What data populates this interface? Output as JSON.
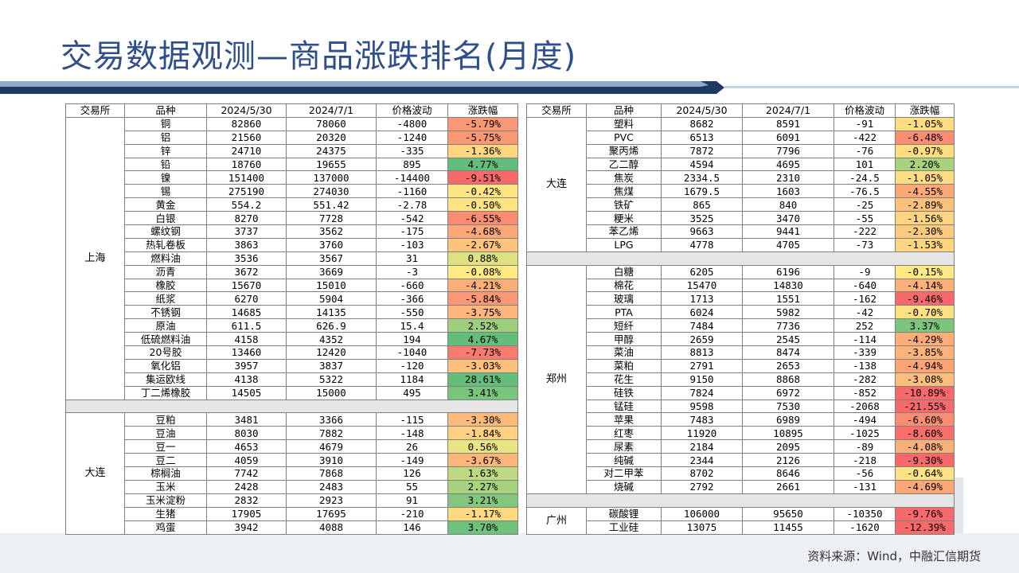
{
  "title": "交易数据观测—商品涨跌排名(月度)",
  "source": "资料来源：Wind，中融汇信期货",
  "headers": [
    "交易所",
    "品种",
    "2024/5/30",
    "2024/7/1",
    "价格波动",
    "涨跌幅"
  ],
  "left_groups": [
    {
      "exchange": "上海",
      "rows": [
        [
          "铜",
          "82860",
          "78060",
          "-4800",
          "-5.79%"
        ],
        [
          "铝",
          "21560",
          "20320",
          "-1240",
          "-5.75%"
        ],
        [
          "锌",
          "24710",
          "24375",
          "-335",
          "-1.36%"
        ],
        [
          "铅",
          "18760",
          "19655",
          "895",
          "4.77%"
        ],
        [
          "镍",
          "151400",
          "137000",
          "-14400",
          "-9.51%"
        ],
        [
          "锡",
          "275190",
          "274030",
          "-1160",
          "-0.42%"
        ],
        [
          "黄金",
          "554.2",
          "551.42",
          "-2.78",
          "-0.50%"
        ],
        [
          "白银",
          "8270",
          "7728",
          "-542",
          "-6.55%"
        ],
        [
          "螺纹钢",
          "3737",
          "3562",
          "-175",
          "-4.68%"
        ],
        [
          "热轧卷板",
          "3863",
          "3760",
          "-103",
          "-2.67%"
        ],
        [
          "燃料油",
          "3536",
          "3567",
          "31",
          "0.88%"
        ],
        [
          "沥青",
          "3672",
          "3669",
          "-3",
          "-0.08%"
        ],
        [
          "橡胶",
          "15670",
          "15010",
          "-660",
          "-4.21%"
        ],
        [
          "纸浆",
          "6270",
          "5904",
          "-366",
          "-5.84%"
        ],
        [
          "不锈钢",
          "14685",
          "14135",
          "-550",
          "-3.75%"
        ],
        [
          "原油",
          "611.5",
          "626.9",
          "15.4",
          "2.52%"
        ],
        [
          "低硫燃料油",
          "4158",
          "4352",
          "194",
          "4.67%"
        ],
        [
          "20号胶",
          "13460",
          "12420",
          "-1040",
          "-7.73%"
        ],
        [
          "氧化铝",
          "3957",
          "3837",
          "-120",
          "-3.03%"
        ],
        [
          "集运欧线",
          "4138",
          "5322",
          "1184",
          "28.61%"
        ],
        [
          "丁二烯橡胶",
          "14505",
          "15000",
          "495",
          "3.41%"
        ]
      ]
    },
    {
      "exchange": "大连",
      "rows": [
        [
          "豆粕",
          "3481",
          "3366",
          "-115",
          "-3.30%"
        ],
        [
          "豆油",
          "8030",
          "7882",
          "-148",
          "-1.84%"
        ],
        [
          "豆一",
          "4653",
          "4679",
          "26",
          "0.56%"
        ],
        [
          "豆二",
          "4059",
          "3910",
          "-149",
          "-3.67%"
        ],
        [
          "棕榈油",
          "7742",
          "7868",
          "126",
          "1.63%"
        ],
        [
          "玉米",
          "2428",
          "2483",
          "55",
          "2.27%"
        ],
        [
          "玉米淀粉",
          "2832",
          "2923",
          "91",
          "3.21%"
        ],
        [
          "生猪",
          "17905",
          "17695",
          "-210",
          "-1.17%"
        ],
        [
          "鸡蛋",
          "3942",
          "4088",
          "146",
          "3.70%"
        ]
      ]
    }
  ],
  "right_groups": [
    {
      "exchange": "大连",
      "rows": [
        [
          "塑料",
          "8682",
          "8591",
          "-91",
          "-1.05%"
        ],
        [
          "PVC",
          "6513",
          "6091",
          "-422",
          "-6.48%"
        ],
        [
          "聚丙烯",
          "7872",
          "7796",
          "-76",
          "-0.97%"
        ],
        [
          "乙二醇",
          "4594",
          "4695",
          "101",
          "2.20%"
        ],
        [
          "焦炭",
          "2334.5",
          "2310",
          "-24.5",
          "-1.05%"
        ],
        [
          "焦煤",
          "1679.5",
          "1603",
          "-76.5",
          "-4.55%"
        ],
        [
          "铁矿",
          "865",
          "840",
          "-25",
          "-2.89%"
        ],
        [
          "粳米",
          "3525",
          "3470",
          "-55",
          "-1.56%"
        ],
        [
          "苯乙烯",
          "9663",
          "9441",
          "-222",
          "-2.30%"
        ],
        [
          "LPG",
          "4778",
          "4705",
          "-73",
          "-1.53%"
        ]
      ]
    },
    {
      "exchange": "郑州",
      "rows": [
        [
          "白糖",
          "6205",
          "6196",
          "-9",
          "-0.15%"
        ],
        [
          "棉花",
          "15470",
          "14830",
          "-640",
          "-4.14%"
        ],
        [
          "玻璃",
          "1713",
          "1551",
          "-162",
          "-9.46%"
        ],
        [
          "PTA",
          "6024",
          "5982",
          "-42",
          "-0.70%"
        ],
        [
          "短纤",
          "7484",
          "7736",
          "252",
          "3.37%"
        ],
        [
          "甲醇",
          "2659",
          "2545",
          "-114",
          "-4.29%"
        ],
        [
          "菜油",
          "8813",
          "8474",
          "-339",
          "-3.85%"
        ],
        [
          "菜粕",
          "2791",
          "2653",
          "-138",
          "-4.94%"
        ],
        [
          "花生",
          "9150",
          "8868",
          "-282",
          "-3.08%"
        ],
        [
          "硅铁",
          "7824",
          "6972",
          "-852",
          "-10.89%"
        ],
        [
          "锰硅",
          "9598",
          "7530",
          "-2068",
          "-21.55%"
        ],
        [
          "苹果",
          "7483",
          "6989",
          "-494",
          "-6.60%"
        ],
        [
          "红枣",
          "11920",
          "10895",
          "-1025",
          "-8.60%"
        ],
        [
          "尿素",
          "2184",
          "2095",
          "-89",
          "-4.08%"
        ],
        [
          "纯碱",
          "2344",
          "2126",
          "-218",
          "-9.30%"
        ],
        [
          "对二甲苯",
          "8702",
          "8646",
          "-56",
          "-0.64%"
        ],
        [
          "烧碱",
          "2792",
          "2661",
          "-131",
          "-4.69%"
        ]
      ]
    },
    {
      "exchange": "广州",
      "rows": [
        [
          "碳酸锂",
          "106000",
          "95650",
          "-10350",
          "-9.76%"
        ],
        [
          "工业硅",
          "13075",
          "11455",
          "-1620",
          "-12.39%"
        ]
      ]
    }
  ],
  "colors": {
    "title": "#2f4f8a",
    "neg_strong": "#f8696b",
    "pos_strong": "#63be7b",
    "neutral": "#ffeb84"
  }
}
